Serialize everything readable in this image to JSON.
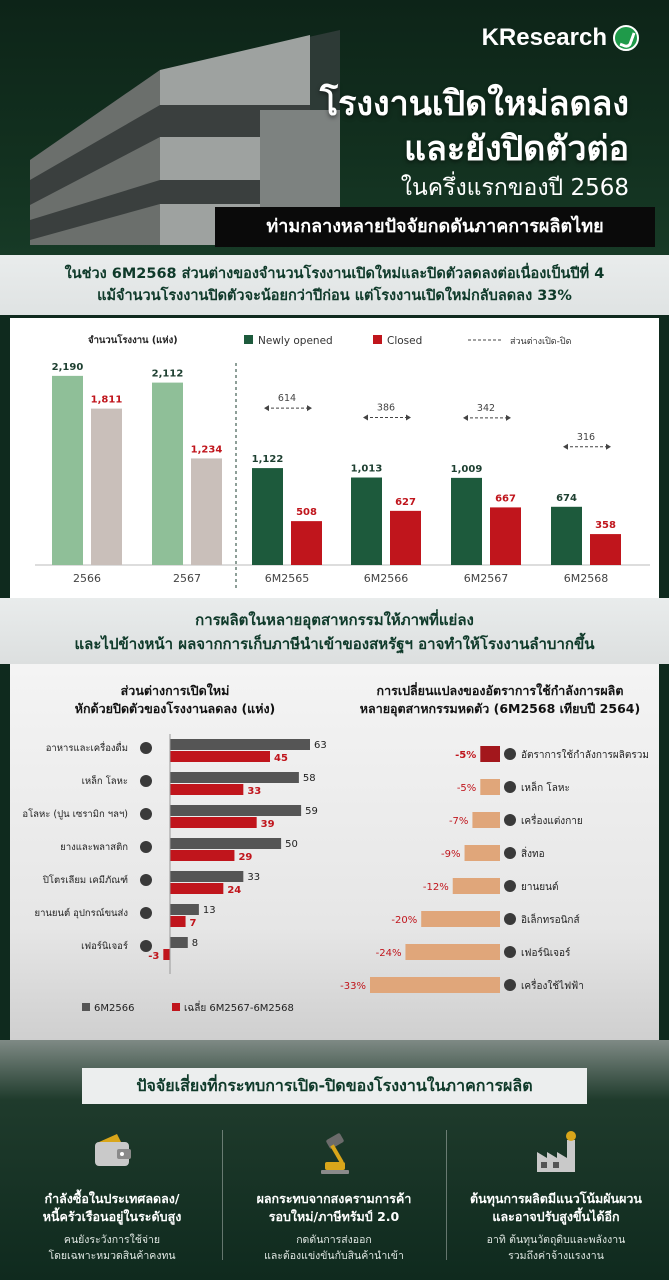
{
  "header": {
    "logo": "KResearch",
    "title_line1": "โรงงานเปิดใหม่ลดลง",
    "title_line2": "และยังปิดตัวต่อ",
    "subtitle": "ในครึ่งแรกของปี 2568",
    "band": "ท่ามกลางหลายปัจจัยกดดันภาคการผลิตไทย"
  },
  "section1": {
    "line1": "ในช่วง 6M2568 ส่วนต่างของจำนวนโรงงานเปิดใหม่และปิดตัวลดลงต่อเนื่องเป็นปีที่ 4",
    "line2": "แม้จำนวนโรงงานปิดตัวจะน้อยกว่าปีก่อน แต่โรงงานเปิดใหม่กลับลดลง 33%"
  },
  "chart_data": [
    {
      "type": "bar",
      "ylabel": "จำนวนโรงงาน (แห่ง)",
      "legend": [
        "Newly opened",
        "Closed",
        "ส่วนต่างเปิด-ปิด"
      ],
      "categories": [
        "2566",
        "2567",
        "6M2565",
        "6M2566",
        "6M2567",
        "6M2568"
      ],
      "series": [
        {
          "name": "Newly opened",
          "values": [
            2190,
            2112,
            1122,
            1013,
            1009,
            674
          ]
        },
        {
          "name": "Closed",
          "values": [
            1811,
            1234,
            508,
            627,
            667,
            358
          ]
        }
      ],
      "differences": [
        null,
        null,
        614,
        386,
        342,
        316
      ],
      "colors": {
        "opened_annual": "#8fbf98",
        "closed_annual": "#c9bfba",
        "opened": "#1d5a3c",
        "closed": "#c0151c"
      }
    },
    {
      "type": "bar",
      "title": "ส่วนต่างการเปิดใหม่\nหักด้วยปิดตัวของโรงงานลดลง (แห่ง)",
      "categories": [
        "อาหารและเครื่องดื่ม",
        "เหล็ก โลหะ",
        "อโลหะ (ปูน เซรามิก ฯลฯ)",
        "ยางและพลาสติก",
        "ปิโตรเลียม เคมีภัณฑ์",
        "ยานยนต์ อุปกรณ์ขนส่ง",
        "เฟอร์นิเจอร์"
      ],
      "series": [
        {
          "name": "6M2566",
          "values": [
            63,
            58,
            59,
            50,
            33,
            13,
            8
          ]
        },
        {
          "name": "เฉลี่ย 6M2567-6M2568",
          "values": [
            45,
            33,
            39,
            29,
            24,
            7,
            -3
          ]
        }
      ],
      "colors": {
        "a": "#555555",
        "b": "#c0151c"
      }
    },
    {
      "type": "bar",
      "title": "การเปลี่ยนแปลงของอัตราการใช้กำลังการผลิต\nหลายอุตสาหกรรมหดตัว (6M2568 เทียบปี 2564)",
      "categories": [
        "อัตราการใช้กำลังการผลิตรวม",
        "เหล็ก โลหะ",
        "เครื่องแต่งกาย",
        "สิ่งทอ",
        "ยานยนต์",
        "อิเล็กทรอนิกส์",
        "เฟอร์นิเจอร์",
        "เครื่องใช้ไฟฟ้า"
      ],
      "values": [
        -5,
        -5,
        -7,
        -9,
        -12,
        -20,
        -24,
        -33
      ],
      "labels": [
        "-5%",
        "-5%",
        "-7%",
        "-9%",
        "-12%",
        "-20%",
        "-24%",
        "-33%"
      ],
      "colors": {
        "total": "#a3171c",
        "bar": "#e0a67a"
      }
    }
  ],
  "section2": {
    "line1": "การผลิตในหลายอุตสาหกรรมให้ภาพที่แย่ลง",
    "line2": "และไปข้างหน้า ผลจากการเก็บภาษีนำเข้าของสหรัฐฯ อาจทำให้โรงงานลำบากขึ้น"
  },
  "bottom": {
    "band": "ปัจจัยเสี่ยงที่กระทบการเปิด-ปิดของโรงงานในภาคการผลิต",
    "cols": [
      {
        "h1": "กำลังซื้อในประเทศลดลง/",
        "h2": "หนี้ครัวเรือนอยู่ในระดับสูง",
        "p1": "คนยังระวังการใช้จ่าย",
        "p2": "โดยเฉพาะหมวดสินค้าคงทน"
      },
      {
        "h1": "ผลกระทบจากสงครามการค้า",
        "h2": "รอบใหม่/ภาษีทรัมป์ 2.0",
        "p1": "กดดันการส่งออก",
        "p2": "และต้องแข่งขันกับสินค้านำเข้า"
      },
      {
        "h1": "ต้นทุนการผลิตมีแนวโน้มผันผวน",
        "h2": "และอาจปรับสูงขึ้นได้อีก",
        "p1": "อาทิ ต้นทุนวัตถุดิบและพลังงาน",
        "p2": "รวมถึงค่าจ้างแรงงาน"
      }
    ]
  }
}
